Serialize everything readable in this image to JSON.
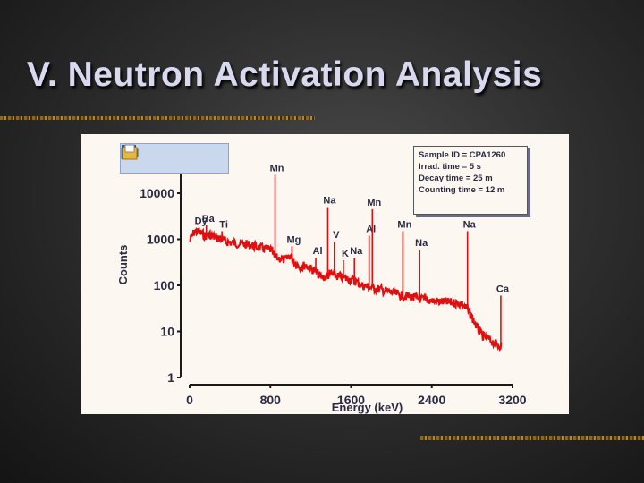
{
  "slide": {
    "title": "V. Neutron Activation Analysis"
  },
  "toolbar": {
    "icons": [
      "save-icon",
      "print-icon",
      "open-icon",
      "export-icon"
    ]
  },
  "legend": {
    "lines": [
      "Sample ID = CPA1260",
      "Irrad. time     =  5 s",
      "Decay time     = 25 m",
      "Counting time = 12 m"
    ]
  },
  "colors": {
    "spectrum": "#e01010",
    "axis": "#1a1a1a",
    "label": "#2a2a40",
    "figure_bg": "#fdf7f2"
  },
  "chart_data": {
    "type": "line",
    "title": "",
    "xlabel": "Energy (keV)",
    "ylabel": "Counts",
    "xlim": [
      0,
      3200
    ],
    "ylim": [
      1,
      30000
    ],
    "y_scale": "log",
    "x_ticks": [
      0,
      800,
      1600,
      2400,
      3200
    ],
    "x_tick_labels": [
      "0",
      "800",
      "1600",
      "2400",
      "3200"
    ],
    "y_ticks": [
      1,
      10,
      100,
      1000,
      10000
    ],
    "y_tick_labels": [
      "1",
      "10",
      "100",
      "1000",
      "10000"
    ],
    "grid": false,
    "baseline": {
      "x": [
        0,
        50,
        100,
        150,
        200,
        250,
        300,
        350,
        400,
        450,
        500,
        550,
        600,
        650,
        700,
        750,
        800,
        850,
        900,
        950,
        1000,
        1050,
        1100,
        1150,
        1200,
        1250,
        1300,
        1350,
        1400,
        1450,
        1500,
        1550,
        1600,
        1650,
        1700,
        1750,
        1800,
        1850,
        1900,
        1950,
        2000,
        2050,
        2100,
        2150,
        2200,
        2250,
        2300,
        2350,
        2400,
        2450,
        2500,
        2550,
        2600,
        2650,
        2700,
        2750,
        2800,
        2850,
        2900,
        2950,
        3000,
        3050,
        3100
      ],
      "y": [
        900,
        1500,
        1400,
        1200,
        1250,
        1100,
        1050,
        900,
        850,
        820,
        800,
        780,
        760,
        700,
        650,
        620,
        600,
        400,
        380,
        350,
        450,
        300,
        250,
        280,
        230,
        200,
        150,
        150,
        180,
        160,
        150,
        140,
        135,
        120,
        100,
        95,
        90,
        85,
        80,
        75,
        70,
        65,
        60,
        58,
        55,
        52,
        50,
        48,
        47,
        45,
        44,
        43,
        42,
        41,
        40,
        30,
        20,
        12,
        8,
        7,
        6,
        5,
        5
      ]
    },
    "peaks": [
      {
        "label": "Dy",
        "energy": 95,
        "counts": 1800
      },
      {
        "label": "Ba",
        "energy": 166,
        "counts": 2000
      },
      {
        "label": "Ti",
        "energy": 320,
        "counts": 1500
      },
      {
        "label": "Mn",
        "energy": 847,
        "counts": 25000
      },
      {
        "label": "Mg",
        "energy": 1014,
        "counts": 700
      },
      {
        "label": "Al",
        "energy": 1250,
        "counts": 400
      },
      {
        "label": "Na",
        "energy": 1369,
        "counts": 5000
      },
      {
        "label": "V",
        "energy": 1434,
        "counts": 900
      },
      {
        "label": "K",
        "energy": 1524,
        "counts": 350
      },
      {
        "label": "Na",
        "energy": 1633,
        "counts": 400
      },
      {
        "label": "Al",
        "energy": 1779,
        "counts": 1200
      },
      {
        "label": "Mn",
        "energy": 1811,
        "counts": 4500
      },
      {
        "label": "Mn",
        "energy": 2113,
        "counts": 1500
      },
      {
        "label": "Na",
        "energy": 2280,
        "counts": 600
      },
      {
        "label": "Na",
        "energy": 2754,
        "counts": 1500
      },
      {
        "label": "Ca",
        "energy": 3084,
        "counts": 60
      }
    ]
  }
}
